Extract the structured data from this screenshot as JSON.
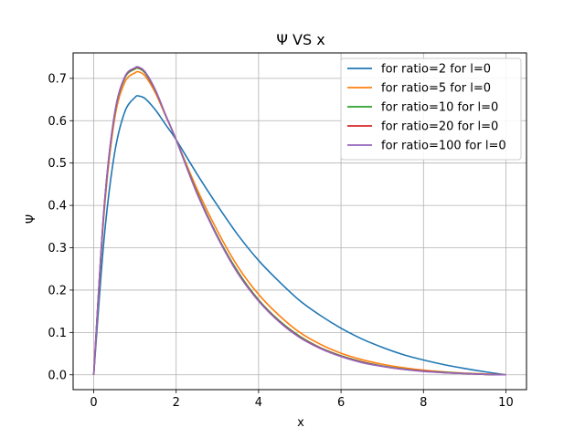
{
  "chart_data": {
    "type": "line",
    "title": "Ψ VS x",
    "xlabel": "x",
    "ylabel": "Ψ",
    "xlim": [
      -0.5,
      10.5
    ],
    "ylim": [
      -0.035,
      0.76
    ],
    "xticks": [
      0,
      2,
      4,
      6,
      8,
      10
    ],
    "yticks": [
      0.0,
      0.1,
      0.2,
      0.3,
      0.4,
      0.5,
      0.6,
      0.7
    ],
    "xtick_labels": [
      "0",
      "2",
      "4",
      "6",
      "8",
      "10"
    ],
    "ytick_labels": [
      "0.0",
      "0.1",
      "0.2",
      "0.3",
      "0.4",
      "0.5",
      "0.6",
      "0.7"
    ],
    "grid": true,
    "legend_position": "top-right",
    "x": [
      0,
      0.25,
      0.5,
      0.75,
      1,
      1.1,
      1.25,
      1.5,
      1.75,
      2,
      2.5,
      3,
      3.5,
      4,
      4.5,
      5,
      5.5,
      6,
      6.5,
      7,
      7.5,
      8,
      8.5,
      9,
      9.5,
      10
    ],
    "series": [
      {
        "name": "for ratio=2 for l=0",
        "color": "#1f77b4",
        "values": [
          0.0,
          0.32,
          0.52,
          0.62,
          0.655,
          0.658,
          0.652,
          0.625,
          0.59,
          0.555,
          0.475,
          0.4,
          0.33,
          0.27,
          0.22,
          0.175,
          0.14,
          0.11,
          0.085,
          0.065,
          0.048,
          0.035,
          0.024,
          0.015,
          0.007,
          0.0
        ]
      },
      {
        "name": "for ratio=5 for l=0",
        "color": "#ff7f0e",
        "values": [
          0.0,
          0.38,
          0.6,
          0.69,
          0.713,
          0.715,
          0.705,
          0.665,
          0.61,
          0.555,
          0.44,
          0.34,
          0.255,
          0.19,
          0.14,
          0.1,
          0.072,
          0.051,
          0.036,
          0.025,
          0.017,
          0.011,
          0.007,
          0.004,
          0.002,
          0.0
        ]
      },
      {
        "name": "for ratio=10 for l=0",
        "color": "#2ca02c",
        "values": [
          0.0,
          0.39,
          0.61,
          0.7,
          0.722,
          0.723,
          0.712,
          0.67,
          0.612,
          0.555,
          0.432,
          0.328,
          0.243,
          0.177,
          0.128,
          0.091,
          0.064,
          0.045,
          0.031,
          0.021,
          0.014,
          0.009,
          0.006,
          0.003,
          0.001,
          0.0
        ]
      },
      {
        "name": "for ratio=20 for l=0",
        "color": "#d62728",
        "values": [
          0.0,
          0.392,
          0.612,
          0.702,
          0.724,
          0.725,
          0.714,
          0.671,
          0.612,
          0.555,
          0.43,
          0.326,
          0.24,
          0.175,
          0.126,
          0.089,
          0.063,
          0.044,
          0.03,
          0.02,
          0.013,
          0.009,
          0.005,
          0.003,
          0.001,
          0.0
        ]
      },
      {
        "name": "for ratio=100 for l=0",
        "color": "#9467bd",
        "values": [
          0.0,
          0.393,
          0.613,
          0.703,
          0.725,
          0.726,
          0.715,
          0.672,
          0.612,
          0.555,
          0.429,
          0.325,
          0.239,
          0.174,
          0.125,
          0.088,
          0.062,
          0.043,
          0.029,
          0.02,
          0.013,
          0.008,
          0.005,
          0.003,
          0.001,
          0.0
        ]
      }
    ]
  }
}
